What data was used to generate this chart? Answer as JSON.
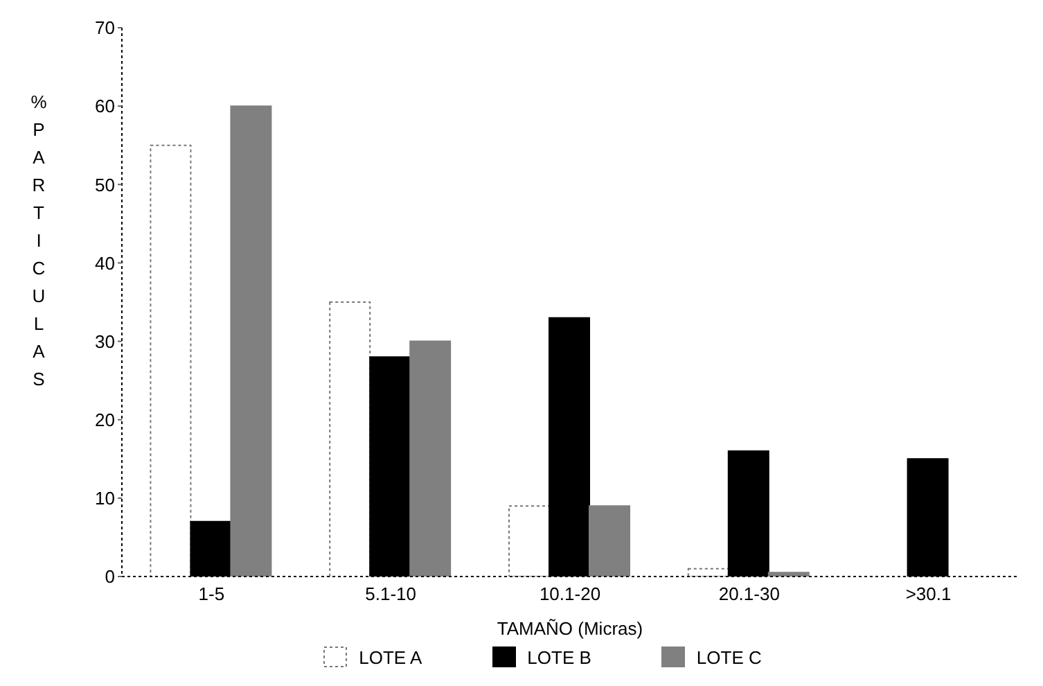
{
  "chart_data": {
    "type": "bar",
    "xlabel": "TAMAÑO (Micras)",
    "ylabel": "% PARTICULAS",
    "categories": [
      "1-5",
      "5.1-10",
      "10.1-20",
      "20.1-30",
      ">30.1"
    ],
    "series": [
      {
        "name": "LOTE A",
        "color": "#ffffff",
        "values": [
          55,
          35,
          9,
          1,
          0
        ]
      },
      {
        "name": "LOTE B",
        "color": "#000000",
        "values": [
          7,
          28,
          33,
          16,
          15
        ]
      },
      {
        "name": "LOTE C",
        "color": "#808080",
        "values": [
          60,
          30,
          9,
          0.5,
          0
        ]
      }
    ],
    "ylim": [
      0,
      70
    ],
    "yticks": [
      0,
      10,
      20,
      30,
      40,
      50,
      60,
      70
    ],
    "grid": false,
    "legend": "bottom"
  }
}
